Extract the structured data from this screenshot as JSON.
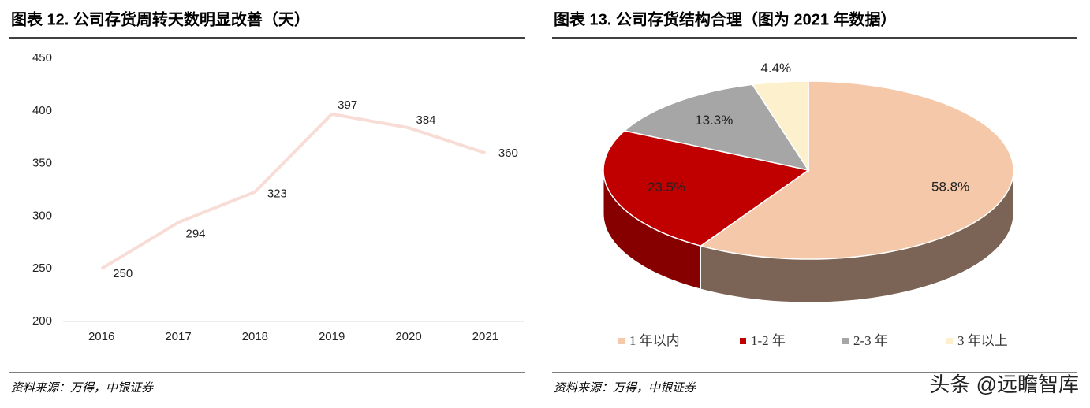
{
  "chart_data": [
    {
      "type": "line",
      "title": "图表 12. 公司存货周转天数明显改善（天）",
      "categories": [
        "2016",
        "2017",
        "2018",
        "2019",
        "2020",
        "2021"
      ],
      "values": [
        250,
        294,
        323,
        397,
        384,
        360
      ],
      "color": "#f8ddd7",
      "ylim": [
        200,
        450
      ],
      "yticks": [
        200,
        250,
        300,
        350,
        400,
        450
      ],
      "source": "资料来源：万得，中银证券"
    },
    {
      "type": "pie",
      "title": "图表 13. 公司存货结构合理（图为 2021 年数据）",
      "categories": [
        "1 年以内",
        "1-2 年",
        "2-3 年",
        "3 年以上"
      ],
      "values": [
        58.8,
        23.5,
        13.3,
        4.4
      ],
      "value_labels": [
        "58.8%",
        "23.5%",
        "13.3%",
        "4.4%"
      ],
      "colors": [
        "#f5c8aa",
        "#c00000",
        "#a6a6a6",
        "#fdf0cc"
      ],
      "source": "资料来源：万得，中银证券"
    }
  ],
  "watermark": "头条 @远瞻智库"
}
